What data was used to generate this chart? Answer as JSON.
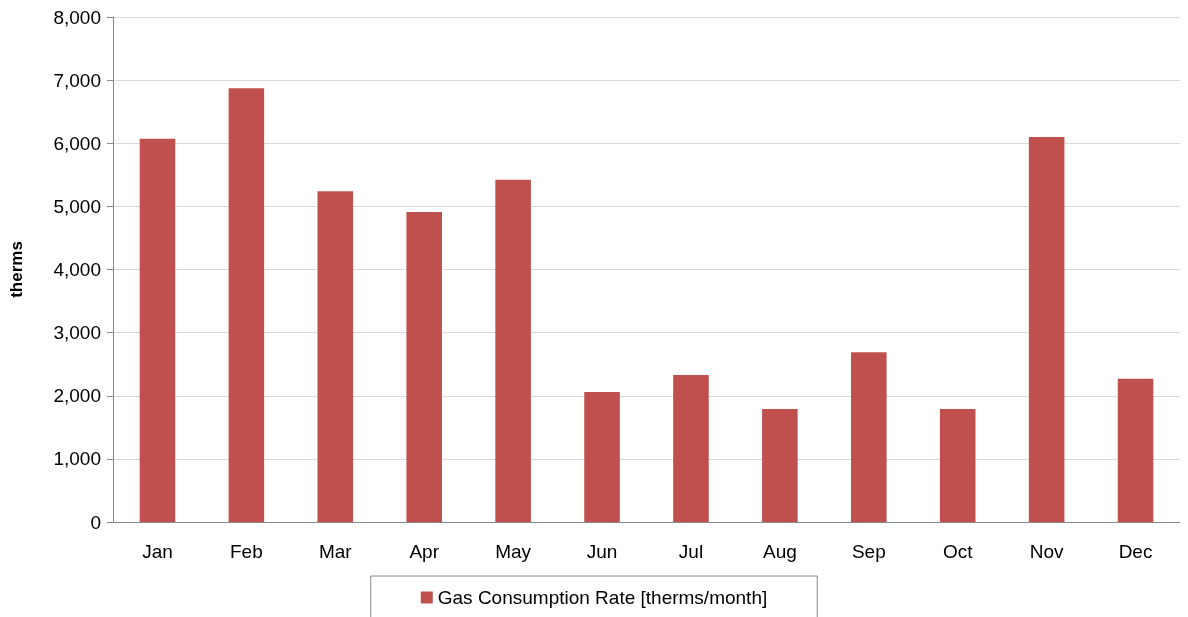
{
  "chart_data": {
    "type": "bar",
    "ylabel": "therms",
    "categories": [
      "Jan",
      "Feb",
      "Mar",
      "Apr",
      "May",
      "Jun",
      "Jul",
      "Aug",
      "Sep",
      "Oct",
      "Nov",
      "Dec"
    ],
    "series": [
      {
        "name": "Gas Consumption Rate [therms/month]",
        "color": "#c0504d",
        "values": [
          6070,
          6870,
          5240,
          4910,
          5420,
          2060,
          2330,
          1790,
          2690,
          1790,
          6100,
          2270
        ]
      }
    ],
    "ylim": [
      0,
      8000
    ],
    "yticks": [
      {
        "value": 0,
        "label": "0"
      },
      {
        "value": 1000,
        "label": "1,000"
      },
      {
        "value": 2000,
        "label": "2,000"
      },
      {
        "value": 3000,
        "label": "3,000"
      },
      {
        "value": 4000,
        "label": "4,000"
      },
      {
        "value": 5000,
        "label": "5,000"
      },
      {
        "value": 6000,
        "label": "6,000"
      },
      {
        "value": 7000,
        "label": "7,000"
      },
      {
        "value": 8000,
        "label": "8,000"
      }
    ],
    "grid": "y",
    "legend": "bottom"
  }
}
